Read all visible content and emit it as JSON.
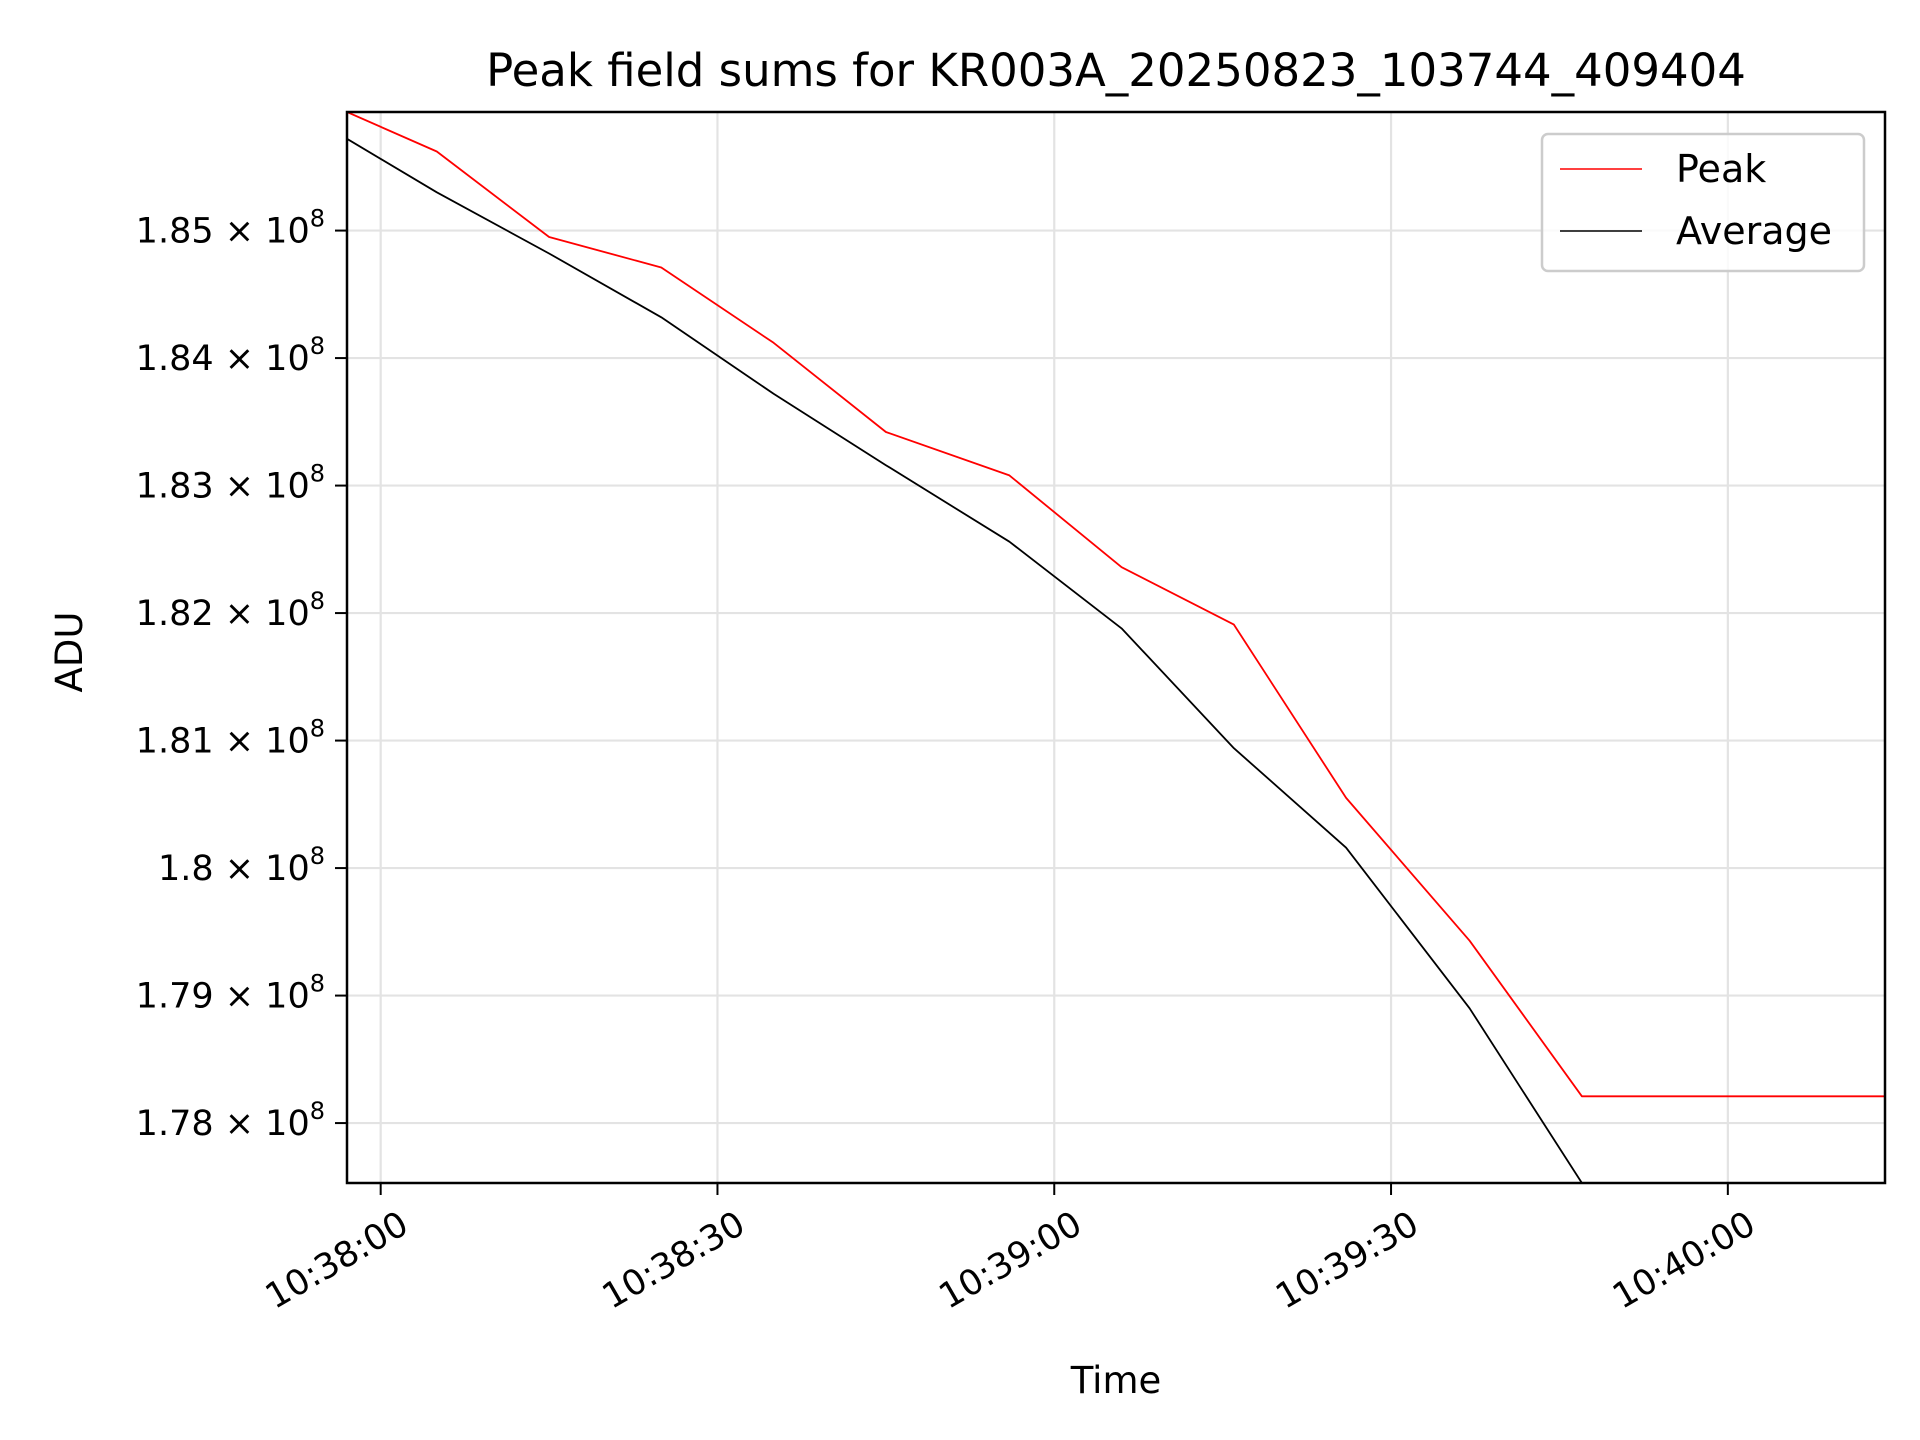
{
  "chart_data": {
    "type": "line",
    "title": "Peak field sums for KR003A_20250823_103744_409404",
    "xlabel": "Time",
    "ylabel": "ADU",
    "xlim": [
      "10:37:57",
      "10:40:14"
    ],
    "ylim": [
      177.53,
      185.93
    ],
    "y_scale_note": "×10^6 ADU",
    "x_ticks": [
      "10:38:00",
      "10:38:30",
      "10:39:00",
      "10:39:30",
      "10:40:00"
    ],
    "y_ticks": [
      {
        "value": 185,
        "mantissa": "1.85",
        "exp": "8"
      },
      {
        "value": 184,
        "mantissa": "1.84",
        "exp": "8"
      },
      {
        "value": 183,
        "mantissa": "1.83",
        "exp": "8"
      },
      {
        "value": 182,
        "mantissa": "1.82",
        "exp": "8"
      },
      {
        "value": 181,
        "mantissa": "1.81",
        "exp": "8"
      },
      {
        "value": 180,
        "mantissa": "1.8",
        "exp": "8"
      },
      {
        "value": 179,
        "mantissa": "1.79",
        "exp": "8"
      },
      {
        "value": 178,
        "mantissa": "1.78",
        "exp": "8"
      }
    ],
    "times_symbol": "×",
    "base": "10",
    "grid": true,
    "legend_position": "top-right",
    "series": [
      {
        "name": "Peak",
        "color": "#ff0000",
        "x": [
          "10:37:57",
          "10:38:05",
          "10:38:15",
          "10:38:25",
          "10:38:35",
          "10:38:45",
          "10:38:56",
          "10:39:06",
          "10:39:16",
          "10:39:26",
          "10:39:37",
          "10:39:47",
          "10:39:57",
          "10:40:14"
        ],
        "y": [
          185.93,
          185.62,
          184.95,
          184.71,
          184.12,
          183.42,
          183.08,
          182.36,
          181.91,
          180.55,
          179.43,
          178.21,
          178.21,
          178.21
        ]
      },
      {
        "name": "Average",
        "color": "#000000",
        "x": [
          "10:37:57",
          "10:38:05",
          "10:38:15",
          "10:38:25",
          "10:38:35",
          "10:38:45",
          "10:38:56",
          "10:39:06",
          "10:39:16",
          "10:39:26",
          "10:39:37",
          "10:39:47"
        ],
        "y": [
          185.72,
          185.3,
          184.82,
          184.32,
          183.72,
          183.16,
          182.56,
          181.88,
          180.94,
          180.16,
          178.9,
          177.53
        ]
      }
    ]
  }
}
